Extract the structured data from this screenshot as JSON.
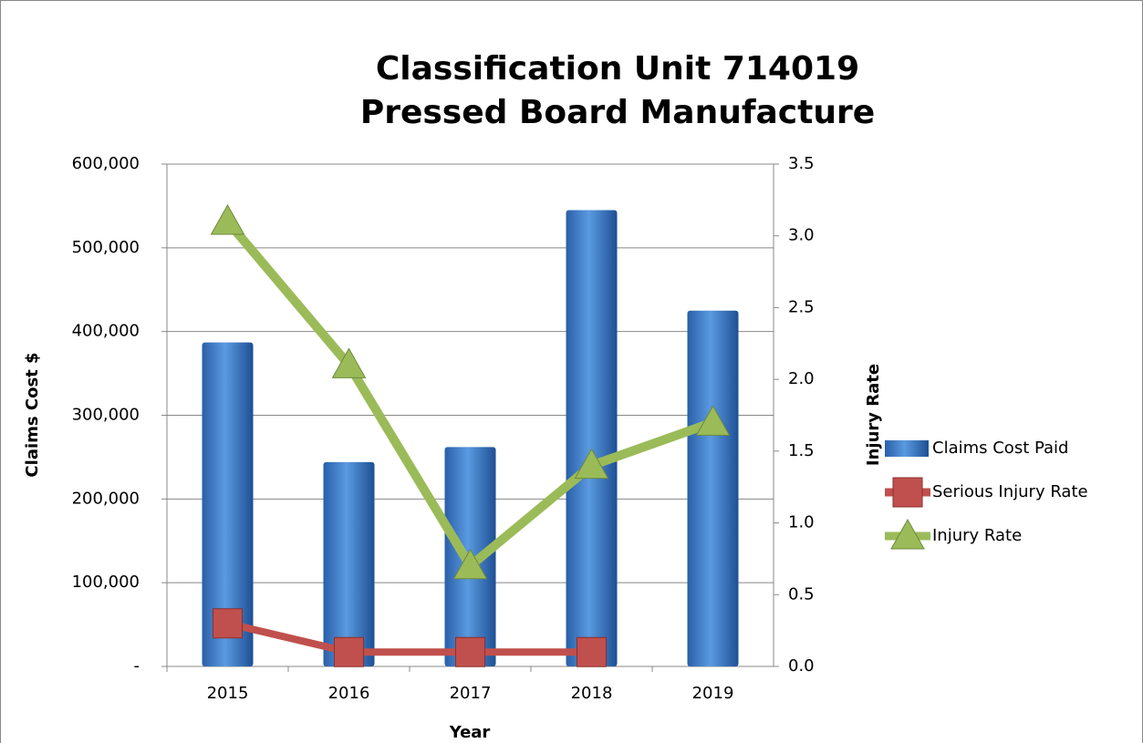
{
  "chart_data": {
    "type": "bar_line",
    "title": [
      "Classification Unit 714019",
      "Pressed Board Manufacture"
    ],
    "x_label": "Year",
    "y_label": "Claims Cost $",
    "y2_label": "Injury Rate",
    "categories": [
      "2015",
      "2016",
      "2017",
      "2018",
      "2019"
    ],
    "series": [
      {
        "name": "Claims Cost Paid",
        "type": "bar",
        "color": "#4a86d0",
        "axis": "y",
        "values": [
          387000,
          244000,
          262000,
          545000,
          425000
        ]
      },
      {
        "name": "Serious Injury Rate",
        "type": "line",
        "marker": "square",
        "color": "#c0504d",
        "axis": "y2",
        "values": [
          0.3,
          0.1,
          0.1,
          0.1,
          null
        ]
      },
      {
        "name": "Injury Rate",
        "type": "line",
        "marker": "triangle",
        "color": "#9bbb59",
        "axis": "y2",
        "values": [
          3.1,
          2.1,
          0.7,
          1.4,
          1.7
        ]
      }
    ],
    "ylim": [
      0,
      600000
    ],
    "yticks": [
      {
        "value": 0,
        "label": "-"
      },
      {
        "value": 100000,
        "label": "100,000"
      },
      {
        "value": 200000,
        "label": "200,000"
      },
      {
        "value": 300000,
        "label": "300,000"
      },
      {
        "value": 400000,
        "label": "400,000"
      },
      {
        "value": 500000,
        "label": "500,000"
      },
      {
        "value": 600000,
        "label": "600,000"
      }
    ],
    "y2lim": [
      0,
      3.5
    ],
    "y2ticks": [
      {
        "value": 0,
        "label": "0.0"
      },
      0.5,
      {
        "value": 1,
        "label": "1.0"
      },
      1.5,
      {
        "value": 2,
        "label": "2.0"
      },
      2.5,
      {
        "value": 3,
        "label": "3.0"
      },
      3.5
    ],
    "grid": true,
    "legend": "right"
  }
}
